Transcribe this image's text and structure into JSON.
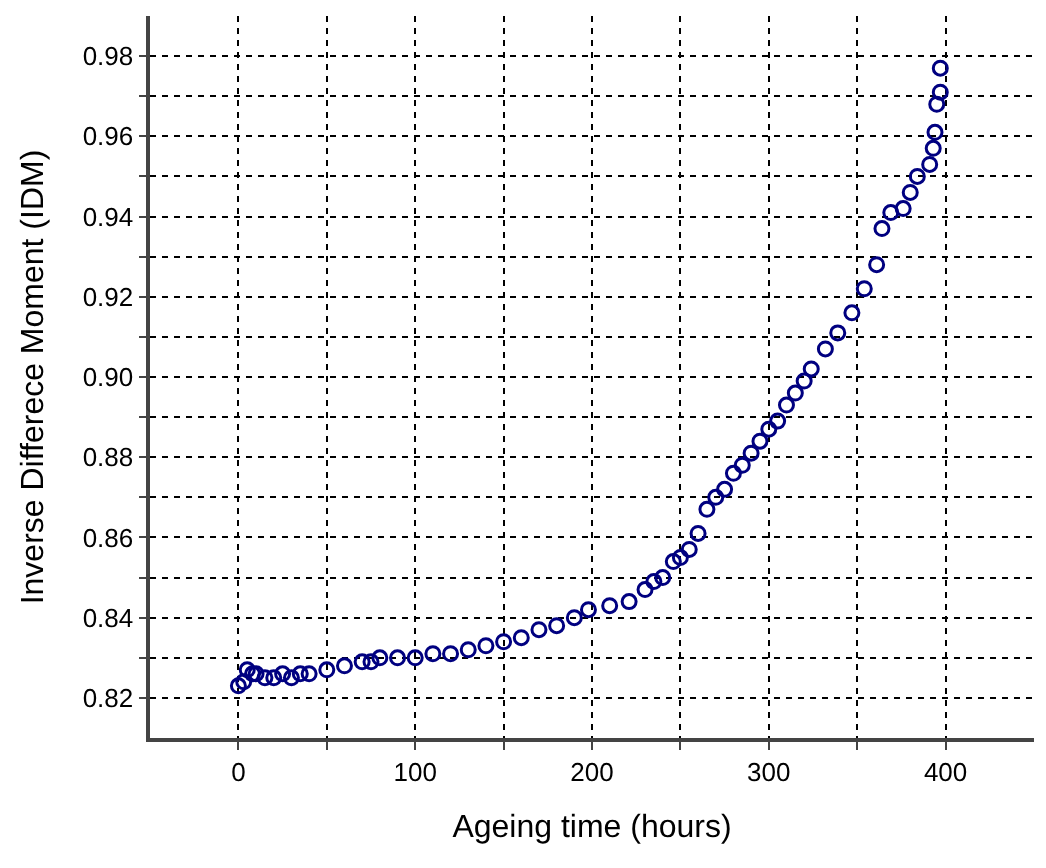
{
  "chart_data": {
    "type": "scatter",
    "xlabel": "Ageing time (hours)",
    "ylabel": "Inverse Differece Moment (IDM)",
    "xlim": [
      -50,
      450
    ],
    "ylim": [
      0.81,
      0.99
    ],
    "xticks": [
      0,
      {
        "value": 50,
        "label": null
      },
      100,
      {
        "value": 150,
        "label": null
      },
      200,
      {
        "value": 250,
        "label": null
      },
      300,
      {
        "value": 350,
        "label": null
      },
      400
    ],
    "yticks": [
      0.82,
      {
        "value": 0.83,
        "label": null
      },
      0.84,
      {
        "value": 0.85,
        "label": null
      },
      0.86,
      {
        "value": 0.87,
        "label": null
      },
      0.88,
      {
        "value": 0.89,
        "label": null
      },
      {
        "value": 0.9,
        "label": "0.90"
      },
      {
        "value": 0.91,
        "label": null
      },
      0.92,
      {
        "value": 0.93,
        "label": null
      },
      0.94,
      {
        "value": 0.95,
        "label": null
      },
      0.96,
      {
        "value": 0.97,
        "label": null
      },
      0.98
    ],
    "grid": true,
    "marker": "circle",
    "x": [
      0,
      3,
      5,
      8,
      10,
      15,
      20,
      25,
      30,
      35,
      40,
      50,
      60,
      70,
      75,
      80,
      90,
      100,
      110,
      120,
      130,
      140,
      150,
      160,
      170,
      180,
      190,
      198,
      210,
      221,
      230,
      235,
      240,
      246,
      250,
      255,
      260,
      265,
      270,
      275,
      280,
      285,
      290,
      295,
      300,
      305,
      310,
      315,
      320,
      324,
      332,
      339,
      347,
      354,
      361,
      364,
      369,
      376,
      380,
      384,
      391,
      393,
      394,
      395,
      397,
      397
    ],
    "series": [
      {
        "color": "#000080",
        "values": [
          0.823,
          0.824,
          0.827,
          0.826,
          0.826,
          0.825,
          0.825,
          0.826,
          0.825,
          0.826,
          0.826,
          0.827,
          0.828,
          0.829,
          0.829,
          0.83,
          0.83,
          0.83,
          0.831,
          0.831,
          0.832,
          0.833,
          0.834,
          0.835,
          0.837,
          0.838,
          0.84,
          0.842,
          0.843,
          0.844,
          0.847,
          0.849,
          0.85,
          0.854,
          0.855,
          0.857,
          0.861,
          0.867,
          0.87,
          0.872,
          0.876,
          0.878,
          0.881,
          0.884,
          0.887,
          0.889,
          0.893,
          0.896,
          0.899,
          0.902,
          0.907,
          0.911,
          0.916,
          0.922,
          0.928,
          0.937,
          0.941,
          0.942,
          0.946,
          0.95,
          0.953,
          0.957,
          0.961,
          0.968,
          0.971,
          0.977
        ]
      }
    ]
  }
}
